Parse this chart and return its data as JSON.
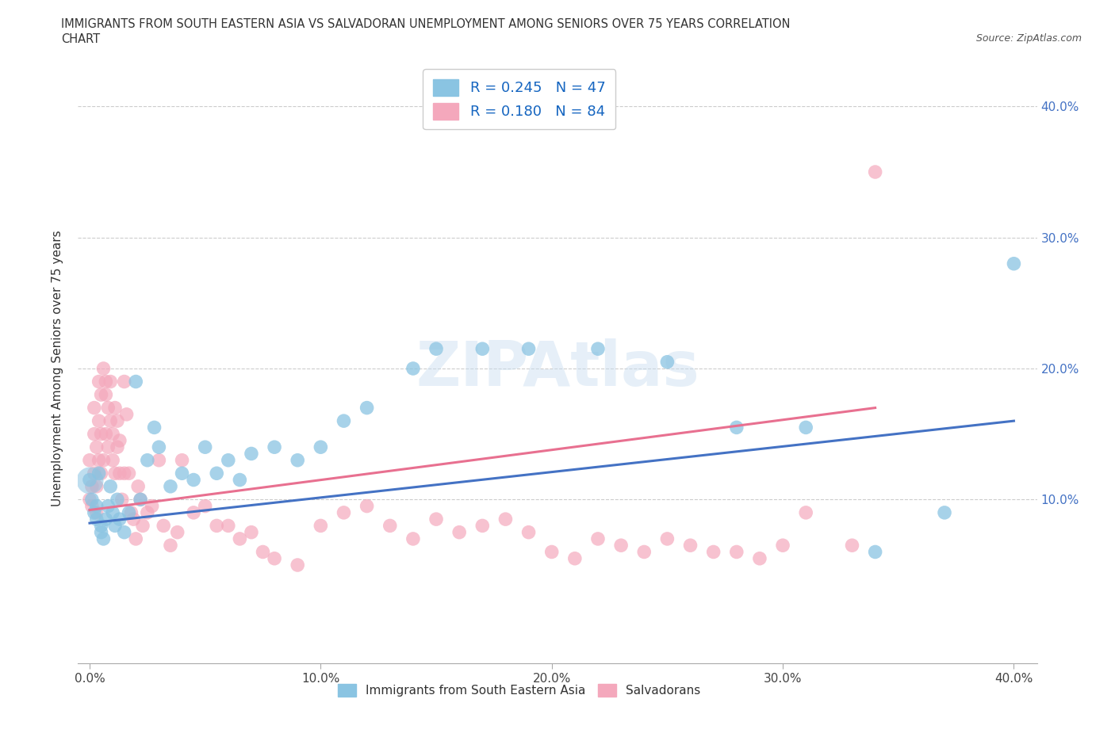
{
  "title_line1": "IMMIGRANTS FROM SOUTH EASTERN ASIA VS SALVADORAN UNEMPLOYMENT AMONG SENIORS OVER 75 YEARS CORRELATION",
  "title_line2": "CHART",
  "source": "Source: ZipAtlas.com",
  "ylabel": "Unemployment Among Seniors over 75 years",
  "legend_label1": "Immigrants from South Eastern Asia",
  "legend_label2": "Salvadorans",
  "R1": 0.245,
  "N1": 47,
  "R2": 0.18,
  "N2": 84,
  "color_blue": "#8ac4e2",
  "color_pink": "#f4a8bc",
  "color_blue_text": "#1565c0",
  "color_pink_text": "#c2185b",
  "watermark": "ZIPAtlas",
  "blue_x": [
    0.0,
    0.001,
    0.002,
    0.003,
    0.003,
    0.004,
    0.005,
    0.005,
    0.006,
    0.007,
    0.008,
    0.009,
    0.01,
    0.011,
    0.012,
    0.013,
    0.015,
    0.017,
    0.02,
    0.022,
    0.025,
    0.028,
    0.03,
    0.035,
    0.04,
    0.045,
    0.05,
    0.055,
    0.06,
    0.065,
    0.07,
    0.08,
    0.09,
    0.1,
    0.11,
    0.12,
    0.14,
    0.15,
    0.17,
    0.19,
    0.22,
    0.25,
    0.28,
    0.31,
    0.34,
    0.37,
    0.4
  ],
  "blue_y": [
    0.115,
    0.1,
    0.09,
    0.085,
    0.095,
    0.12,
    0.08,
    0.075,
    0.07,
    0.085,
    0.095,
    0.11,
    0.09,
    0.08,
    0.1,
    0.085,
    0.075,
    0.09,
    0.19,
    0.1,
    0.13,
    0.155,
    0.14,
    0.11,
    0.12,
    0.115,
    0.14,
    0.12,
    0.13,
    0.115,
    0.135,
    0.14,
    0.13,
    0.14,
    0.16,
    0.17,
    0.2,
    0.215,
    0.215,
    0.215,
    0.215,
    0.205,
    0.155,
    0.155,
    0.06,
    0.09,
    0.28
  ],
  "pink_x": [
    0.0,
    0.0,
    0.001,
    0.001,
    0.002,
    0.002,
    0.002,
    0.003,
    0.003,
    0.003,
    0.004,
    0.004,
    0.004,
    0.005,
    0.005,
    0.005,
    0.006,
    0.006,
    0.007,
    0.007,
    0.007,
    0.008,
    0.008,
    0.009,
    0.009,
    0.01,
    0.01,
    0.011,
    0.011,
    0.012,
    0.012,
    0.013,
    0.013,
    0.014,
    0.015,
    0.015,
    0.016,
    0.017,
    0.018,
    0.019,
    0.02,
    0.021,
    0.022,
    0.023,
    0.025,
    0.027,
    0.03,
    0.032,
    0.035,
    0.038,
    0.04,
    0.045,
    0.05,
    0.055,
    0.06,
    0.065,
    0.07,
    0.075,
    0.08,
    0.09,
    0.1,
    0.11,
    0.12,
    0.13,
    0.14,
    0.15,
    0.16,
    0.17,
    0.18,
    0.19,
    0.2,
    0.21,
    0.22,
    0.23,
    0.24,
    0.25,
    0.26,
    0.27,
    0.28,
    0.29,
    0.3,
    0.31,
    0.33,
    0.34
  ],
  "pink_y": [
    0.13,
    0.1,
    0.11,
    0.095,
    0.12,
    0.15,
    0.17,
    0.14,
    0.11,
    0.09,
    0.16,
    0.13,
    0.19,
    0.15,
    0.18,
    0.12,
    0.13,
    0.2,
    0.18,
    0.15,
    0.19,
    0.14,
    0.17,
    0.16,
    0.19,
    0.13,
    0.15,
    0.17,
    0.12,
    0.16,
    0.14,
    0.12,
    0.145,
    0.1,
    0.12,
    0.19,
    0.165,
    0.12,
    0.09,
    0.085,
    0.07,
    0.11,
    0.1,
    0.08,
    0.09,
    0.095,
    0.13,
    0.08,
    0.065,
    0.075,
    0.13,
    0.09,
    0.095,
    0.08,
    0.08,
    0.07,
    0.075,
    0.06,
    0.055,
    0.05,
    0.08,
    0.09,
    0.095,
    0.08,
    0.07,
    0.085,
    0.075,
    0.08,
    0.085,
    0.075,
    0.06,
    0.055,
    0.07,
    0.065,
    0.06,
    0.07,
    0.065,
    0.06,
    0.06,
    0.055,
    0.065,
    0.09,
    0.065,
    0.35
  ],
  "blue_line_x": [
    0.0,
    0.4
  ],
  "blue_line_y": [
    0.082,
    0.16
  ],
  "pink_line_x": [
    0.0,
    0.34
  ],
  "pink_line_y": [
    0.092,
    0.17
  ],
  "xlim": [
    0.0,
    0.41
  ],
  "ylim": [
    -0.025,
    0.425
  ],
  "xticks": [
    0.0,
    0.1,
    0.2,
    0.3,
    0.4
  ],
  "xticklabels": [
    "0.0%",
    "10.0%",
    "20.0%",
    "30.0%",
    "40.0%"
  ],
  "yticks_right": [
    0.1,
    0.2,
    0.3,
    0.4
  ],
  "yticklabels_right": [
    "10.0%",
    "20.0%",
    "30.0%",
    "40.0%"
  ]
}
